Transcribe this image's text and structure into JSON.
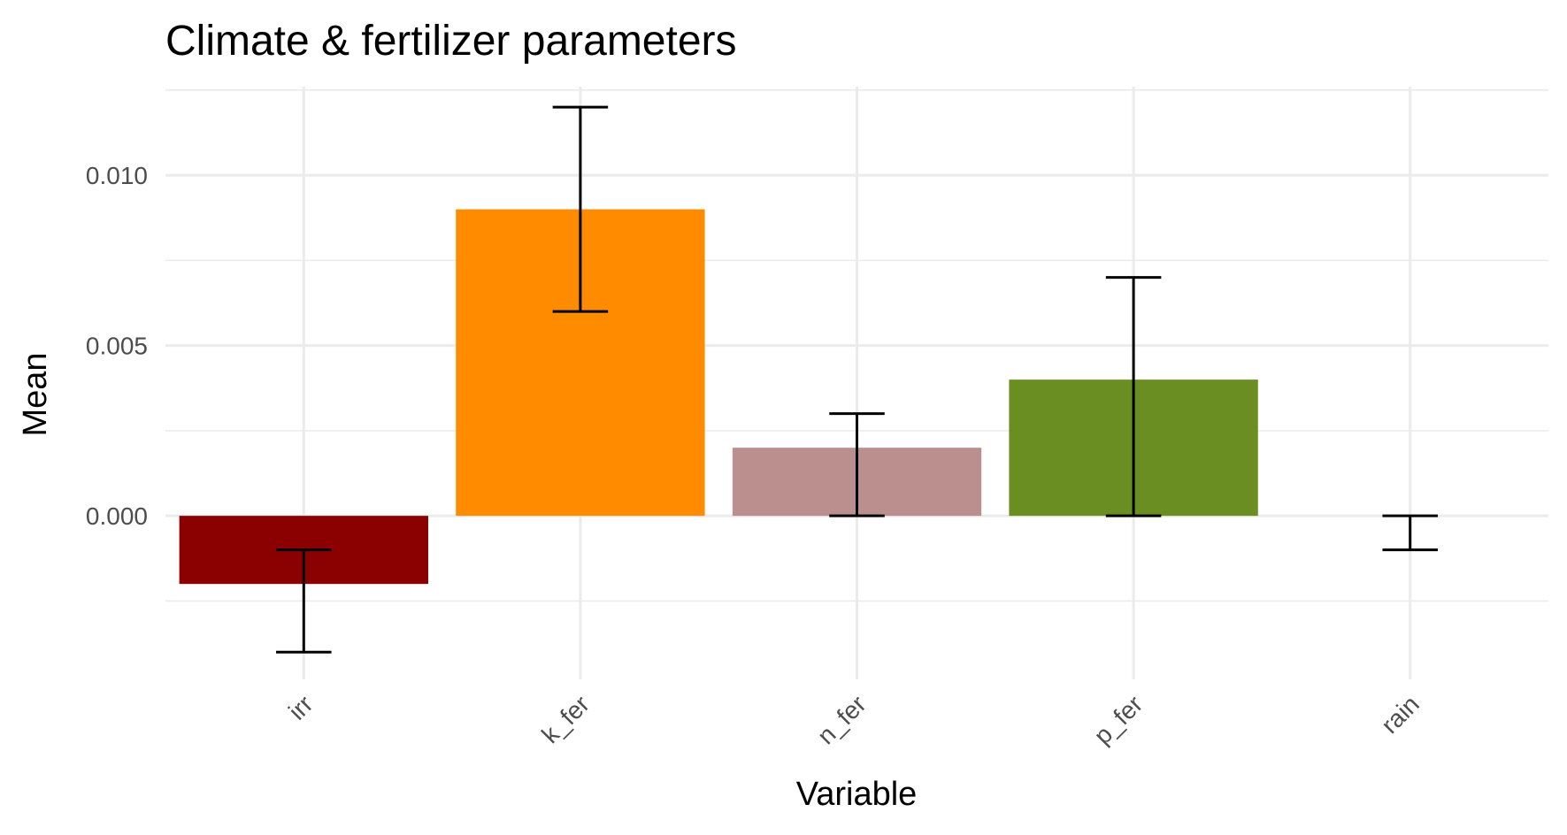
{
  "chart_data": {
    "type": "bar",
    "title": "Climate & fertilizer parameters",
    "xlabel": "Variable",
    "ylabel": "Mean",
    "categories": [
      "irr",
      "k_fer",
      "n_fer",
      "p_fer",
      "rain"
    ],
    "values": [
      -0.002,
      0.009,
      0.002,
      0.004,
      0.0
    ],
    "error_low": [
      -0.004,
      0.006,
      0.0,
      0.0,
      -0.001
    ],
    "error_high": [
      -0.001,
      0.012,
      0.003,
      0.007,
      0.0
    ],
    "colors": [
      "#8b0000",
      "#ff8c00",
      "#bc8f8f",
      "#6b8e23",
      "#999999"
    ],
    "ylim": [
      -0.0048,
      0.0126
    ],
    "yticks": [
      0.0,
      0.005,
      0.01
    ],
    "ytick_labels": [
      "0.000",
      "0.005",
      "0.010"
    ],
    "grid": true,
    "legend": "none"
  }
}
